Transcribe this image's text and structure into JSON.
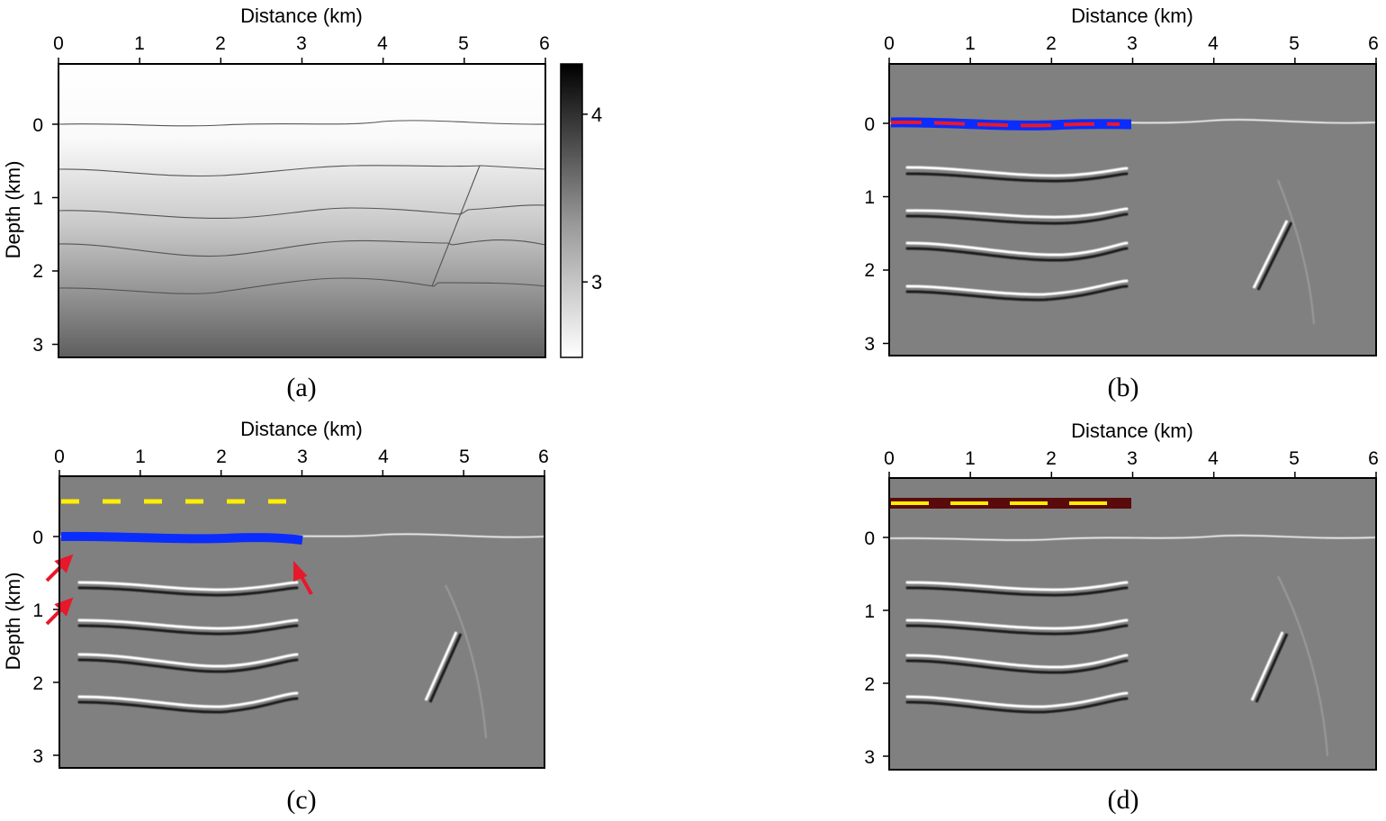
{
  "panels": [
    {
      "id": "a",
      "caption": "(a)",
      "xlabel": "Distance (km)",
      "ylabel": "Depth (km)",
      "xticks": [
        "0",
        "1",
        "2",
        "3",
        "4",
        "5",
        "6"
      ],
      "yticks": [
        "0",
        "1",
        "2",
        "3"
      ],
      "content": "velocity-model"
    },
    {
      "id": "b",
      "caption": "(b)",
      "xlabel": "Distance (km)",
      "ylabel": "",
      "xticks": [
        "0",
        "1",
        "2",
        "3",
        "4",
        "5",
        "6"
      ],
      "yticks": [
        "0",
        "1",
        "2",
        "3"
      ],
      "content": "migrated-image"
    },
    {
      "id": "c",
      "caption": "(c)",
      "xlabel": "Distance (km)",
      "ylabel": "Depth (km)",
      "xticks": [
        "0",
        "1",
        "2",
        "3",
        "4",
        "5",
        "6"
      ],
      "yticks": [
        "0",
        "1",
        "2",
        "3"
      ],
      "content": "migrated-image"
    },
    {
      "id": "d",
      "caption": "(d)",
      "xlabel": "Distance (km)",
      "ylabel": "",
      "xticks": [
        "0",
        "1",
        "2",
        "3",
        "4",
        "5",
        "6"
      ],
      "yticks": [
        "0",
        "1",
        "2",
        "3"
      ],
      "content": "migrated-image"
    }
  ],
  "colorbar": {
    "ticks": [
      "3",
      "4"
    ],
    "tick_values": [
      3,
      4
    ],
    "range": [
      2.55,
      4.3
    ]
  },
  "axes": {
    "xlim": [
      0,
      6
    ],
    "ylim": [
      3.2,
      -0.8
    ]
  },
  "colors": {
    "receiver_line_blue": "#0a2cff",
    "source_dash_red": "#e8182b",
    "source_dash_yellow": "#ffee00",
    "source_dark_red": "#5a0a0a",
    "arrow_red": "#e8182b",
    "image_background": "#808080",
    "reflector_bright": "#ffffff",
    "reflector_dark": "#141414"
  }
}
